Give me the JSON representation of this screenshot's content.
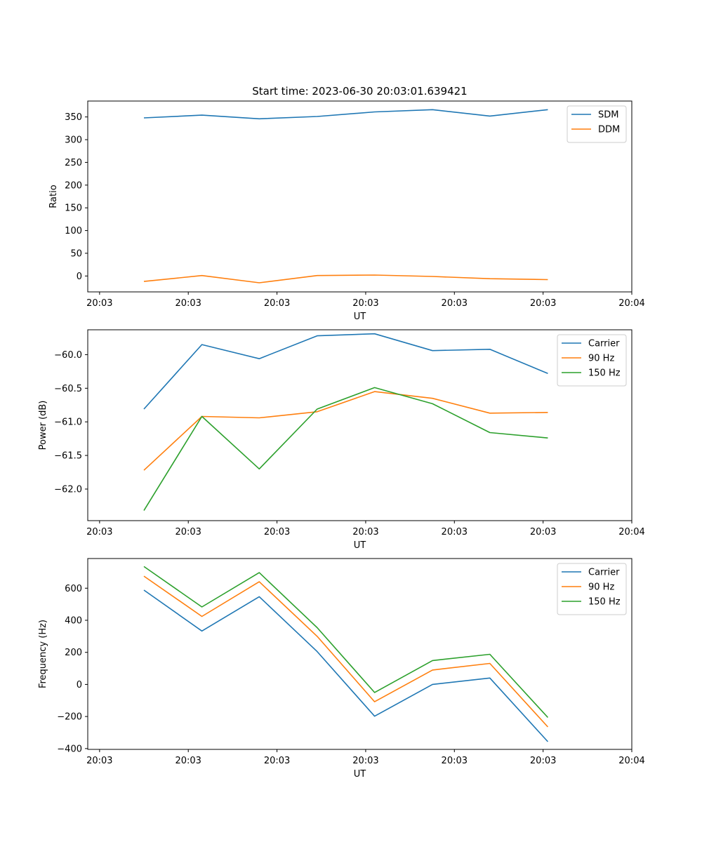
{
  "title": "Start time: 2023-06-30 20:03:01.639421",
  "chart_data": [
    {
      "type": "line",
      "title": "Start time: 2023-06-30 20:03:01.639421",
      "xlabel": "UT",
      "ylabel": "Ratio",
      "xlim": [
        -0.2,
        9.0
      ],
      "ylim": [
        -35,
        385
      ],
      "x": [
        0.75,
        1.73,
        2.7,
        3.68,
        4.65,
        5.63,
        6.6,
        7.58
      ],
      "xticks": [
        0,
        1.5,
        3,
        4.5,
        6,
        7.5,
        9
      ],
      "xtick_labels": [
        "20:03",
        "20:03",
        "20:03",
        "20:03",
        "20:03",
        "20:03",
        "20:04"
      ],
      "yticks": [
        0,
        50,
        100,
        150,
        200,
        250,
        300,
        350
      ],
      "ytick_labels": [
        "0",
        "50",
        "100",
        "150",
        "200",
        "250",
        "300",
        "350"
      ],
      "grid": false,
      "legend": "upper-right",
      "series": [
        {
          "name": "SDM",
          "color": "#1f77b4",
          "values": [
            348,
            354,
            346,
            351,
            361,
            366,
            352,
            366
          ]
        },
        {
          "name": "DDM",
          "color": "#ff7f0e",
          "values": [
            -12,
            1,
            -15,
            1,
            2,
            -1,
            -6,
            -8
          ]
        }
      ]
    },
    {
      "type": "line",
      "xlabel": "UT",
      "ylabel": "Power (dB)",
      "xlim": [
        -0.2,
        9.0
      ],
      "ylim": [
        -62.47,
        -59.63
      ],
      "x": [
        0.75,
        1.73,
        2.7,
        3.68,
        4.65,
        5.63,
        6.6,
        7.58
      ],
      "xticks": [
        0,
        1.5,
        3,
        4.5,
        6,
        7.5,
        9
      ],
      "xtick_labels": [
        "20:03",
        "20:03",
        "20:03",
        "20:03",
        "20:03",
        "20:03",
        "20:04"
      ],
      "yticks": [
        -62.0,
        -61.5,
        -61.0,
        -60.5,
        -60.0
      ],
      "ytick_labels": [
        "−62.0",
        "−61.5",
        "−61.0",
        "−60.5",
        "−60.0"
      ],
      "grid": false,
      "legend": "upper-right",
      "series": [
        {
          "name": "Carrier",
          "color": "#1f77b4",
          "values": [
            -60.81,
            -59.85,
            -60.06,
            -59.72,
            -59.69,
            -59.94,
            -59.92,
            -60.28
          ]
        },
        {
          "name": "90 Hz",
          "color": "#ff7f0e",
          "values": [
            -61.72,
            -60.92,
            -60.94,
            -60.85,
            -60.55,
            -60.65,
            -60.87,
            -60.86
          ]
        },
        {
          "name": "150 Hz",
          "color": "#2ca02c",
          "values": [
            -62.32,
            -60.92,
            -61.7,
            -60.81,
            -60.49,
            -60.73,
            -61.16,
            -61.24
          ]
        }
      ]
    },
    {
      "type": "line",
      "xlabel": "UT",
      "ylabel": "Frequency (Hz)",
      "xlim": [
        -0.2,
        9.0
      ],
      "ylim": [
        -405,
        785
      ],
      "x": [
        0.75,
        1.73,
        2.7,
        3.68,
        4.65,
        5.63,
        6.6,
        7.58
      ],
      "xticks": [
        0,
        1.5,
        3,
        4.5,
        6,
        7.5,
        9
      ],
      "xtick_labels": [
        "20:03",
        "20:03",
        "20:03",
        "20:03",
        "20:03",
        "20:03",
        "20:04"
      ],
      "yticks": [
        -400,
        -200,
        0,
        200,
        400,
        600
      ],
      "ytick_labels": [
        "−400",
        "−200",
        "0",
        "200",
        "400",
        "600"
      ],
      "grid": false,
      "legend": "upper-right",
      "series": [
        {
          "name": "Carrier",
          "color": "#1f77b4",
          "values": [
            588,
            333,
            547,
            205,
            -198,
            0,
            40,
            -357
          ]
        },
        {
          "name": "90 Hz",
          "color": "#ff7f0e",
          "values": [
            675,
            424,
            640,
            300,
            -108,
            90,
            131,
            -265
          ]
        },
        {
          "name": "150 Hz",
          "color": "#2ca02c",
          "values": [
            735,
            483,
            697,
            354,
            -50,
            149,
            188,
            -206
          ]
        }
      ]
    }
  ]
}
